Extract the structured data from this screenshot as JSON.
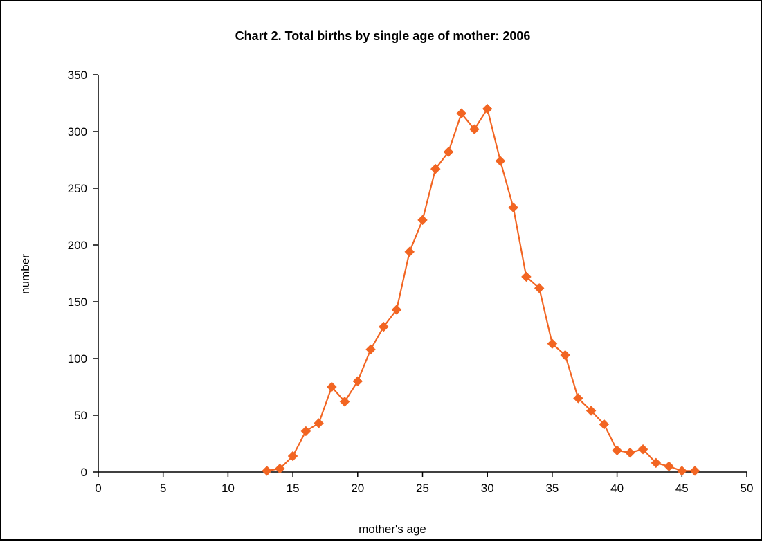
{
  "chart_data": {
    "type": "line",
    "title": "Chart 2. Total births by single age of mother: 2006",
    "xlabel": "mother's age",
    "ylabel": "number",
    "xlim": [
      0,
      50
    ],
    "ylim": [
      0,
      350
    ],
    "xticks": [
      0,
      5,
      10,
      15,
      20,
      25,
      30,
      35,
      40,
      45,
      50
    ],
    "yticks": [
      0,
      50,
      100,
      150,
      200,
      250,
      300,
      350
    ],
    "grid": false,
    "legend": "none",
    "series": [
      {
        "x": [
          13,
          14,
          15,
          16,
          17,
          18,
          19,
          20,
          21,
          22,
          23,
          24,
          25,
          26,
          27,
          28,
          29,
          30,
          31,
          32,
          33,
          34,
          35,
          36,
          37,
          38,
          39,
          40,
          41,
          42,
          43,
          44,
          45,
          46
        ],
        "y": [
          1,
          3,
          14,
          36,
          43,
          75,
          62,
          80,
          108,
          128,
          143,
          194,
          222,
          267,
          282,
          316,
          302,
          320,
          274,
          233,
          172,
          162,
          113,
          103,
          65,
          54,
          42,
          19,
          17,
          20,
          8,
          5,
          1,
          1
        ],
        "color": "#F26522",
        "marker": "diamond"
      }
    ]
  }
}
